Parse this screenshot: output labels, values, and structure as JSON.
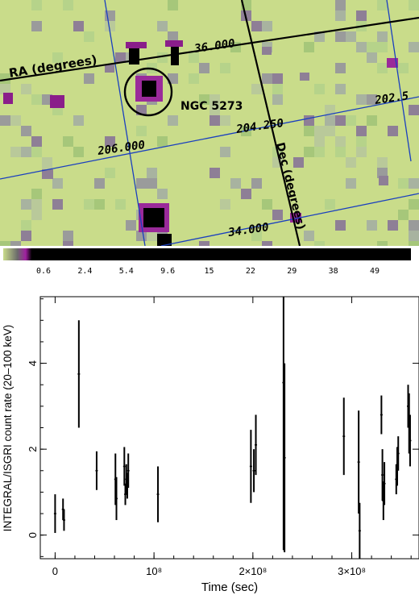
{
  "sky_image": {
    "grid_labels": {
      "ra_axis": "RA (degrees)",
      "dec_axis": "Dec (degrees)",
      "dec_36": "36.000",
      "dec_34": "34.000",
      "ra_202": "202.5",
      "ra_204": "204.250",
      "ra_206": "206.000"
    },
    "source_label": "NGC 5273",
    "colors": {
      "background": "#c9dc8a",
      "grid_line": "#1a3fbf",
      "axis_line": "#000000",
      "source_circle": "#000000"
    }
  },
  "colorbar": {
    "ticks": [
      "0.6",
      "2.4",
      "5.4",
      "9.6",
      "15",
      "22",
      "29",
      "38",
      "49"
    ]
  },
  "chart_data": {
    "type": "scatter",
    "title": "",
    "xlabel": "Time (sec)",
    "ylabel": "INTEGRAL/ISGRI count rate (20–100 keV)",
    "xlim": [
      -15000000.0,
      368000000.0
    ],
    "ylim": [
      -0.55,
      5.55
    ],
    "x_ticks": [
      {
        "value": 0,
        "label": "0"
      },
      {
        "value": 100000000,
        "label": "10⁸"
      },
      {
        "value": 200000000,
        "label": "2×10⁸"
      },
      {
        "value": 300000000,
        "label": "3×10⁸"
      }
    ],
    "y_ticks": [
      {
        "value": 0,
        "label": "0"
      },
      {
        "value": 2,
        "label": "2"
      },
      {
        "value": 4,
        "label": "4"
      }
    ],
    "points": [
      {
        "x": 0,
        "y": 0.5,
        "err": 0.45
      },
      {
        "x": 8000000,
        "y": 0.6,
        "err": 0.25
      },
      {
        "x": 9000000,
        "y": 0.35,
        "err": 0.25
      },
      {
        "x": 24000000,
        "y": 3.75,
        "err": 1.25
      },
      {
        "x": 42000000,
        "y": 1.5,
        "err": 0.45
      },
      {
        "x": 61000000,
        "y": 1.3,
        "err": 0.6
      },
      {
        "x": 62000000,
        "y": 0.85,
        "err": 0.5
      },
      {
        "x": 70000000,
        "y": 1.6,
        "err": 0.45
      },
      {
        "x": 71000000,
        "y": 0.95,
        "err": 0.25
      },
      {
        "x": 72000000,
        "y": 1.3,
        "err": 0.35
      },
      {
        "x": 73000000,
        "y": 1.15,
        "err": 0.3
      },
      {
        "x": 74000000,
        "y": 1.5,
        "err": 0.4
      },
      {
        "x": 104000000,
        "y": 0.95,
        "err": 0.65
      },
      {
        "x": 198000000,
        "y": 1.6,
        "err": 0.85
      },
      {
        "x": 201000000,
        "y": 1.5,
        "err": 0.5
      },
      {
        "x": 203000000,
        "y": 2.1,
        "err": 0.7
      },
      {
        "x": 231000000,
        "y": 3.55,
        "err": 3.9
      },
      {
        "x": 232000000,
        "y": 1.8,
        "err": 2.2
      },
      {
        "x": 292000000,
        "y": 2.3,
        "err": 0.9
      },
      {
        "x": 307000000,
        "y": 1.7,
        "err": 1.2
      },
      {
        "x": 308000000,
        "y": 0.1,
        "err": 0.65
      },
      {
        "x": 330000000,
        "y": 2.8,
        "err": 0.45
      },
      {
        "x": 331000000,
        "y": 1.4,
        "err": 0.6
      },
      {
        "x": 332000000,
        "y": 0.8,
        "err": 0.45
      },
      {
        "x": 333000000,
        "y": 1.2,
        "err": 0.5
      },
      {
        "x": 345000000,
        "y": 1.3,
        "err": 0.35
      },
      {
        "x": 346000000,
        "y": 1.6,
        "err": 0.45
      },
      {
        "x": 347000000,
        "y": 1.9,
        "err": 0.4
      },
      {
        "x": 357000000,
        "y": 3.0,
        "err": 0.5
      },
      {
        "x": 358000000,
        "y": 2.6,
        "err": 0.7
      },
      {
        "x": 359000000,
        "y": 2.2,
        "err": 0.6
      }
    ]
  }
}
